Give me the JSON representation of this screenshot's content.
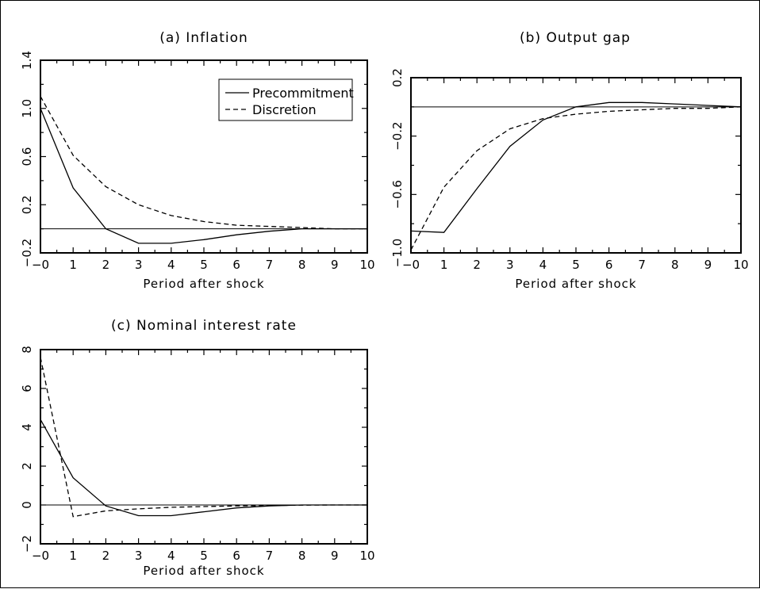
{
  "chart_data": [
    {
      "type": "line",
      "title": "(a) Inflation",
      "xlabel": "Period after shock",
      "ylabel": "",
      "x": [
        0,
        1,
        2,
        3,
        4,
        5,
        6,
        7,
        8,
        9,
        10
      ],
      "xlim": [
        0,
        10
      ],
      "ylim": [
        -0.2,
        1.4
      ],
      "yticks": [
        -0.2,
        0.2,
        0.6,
        1.0,
        1.4
      ],
      "ytick_labels": [
        "−0.2",
        "0.2",
        "0.6",
        "1.0",
        "1.4"
      ],
      "xtick_labels": [
        "−0",
        "1",
        "2",
        "3",
        "4",
        "5",
        "6",
        "7",
        "8",
        "9",
        "10"
      ],
      "zero_line": true,
      "legend": "top-right",
      "series": [
        {
          "name": "Precommitment",
          "style": "solid",
          "values": [
            1.0,
            0.34,
            0.0,
            -0.12,
            -0.12,
            -0.09,
            -0.05,
            -0.02,
            0.0,
            0.0,
            0.0
          ]
        },
        {
          "name": "Discretion",
          "style": "dashed",
          "values": [
            1.1,
            0.61,
            0.35,
            0.2,
            0.11,
            0.06,
            0.03,
            0.02,
            0.01,
            0.0,
            0.0
          ]
        }
      ]
    },
    {
      "type": "line",
      "title": "(b) Output gap",
      "xlabel": "Period after shock",
      "ylabel": "",
      "x": [
        0,
        1,
        2,
        3,
        4,
        5,
        6,
        7,
        8,
        9,
        10
      ],
      "xlim": [
        0,
        10
      ],
      "ylim": [
        -1.0,
        0.2
      ],
      "yticks": [
        -1.0,
        -0.6,
        -0.2,
        0.2
      ],
      "ytick_labels": [
        "−1.0",
        "−0.6",
        "−0.2",
        "0.2"
      ],
      "xtick_labels": [
        "−0",
        "1",
        "2",
        "3",
        "4",
        "5",
        "6",
        "7",
        "8",
        "9",
        "10"
      ],
      "zero_line": true,
      "series": [
        {
          "name": "Precommitment",
          "style": "solid",
          "values": [
            -0.85,
            -0.86,
            -0.56,
            -0.27,
            -0.09,
            0.0,
            0.03,
            0.03,
            0.02,
            0.01,
            0.0
          ]
        },
        {
          "name": "Discretion",
          "style": "dashed",
          "values": [
            -0.98,
            -0.55,
            -0.3,
            -0.15,
            -0.08,
            -0.05,
            -0.03,
            -0.02,
            -0.01,
            -0.01,
            0.0
          ]
        }
      ]
    },
    {
      "type": "line",
      "title": "(c) Nominal interest rate",
      "xlabel": "Period after shock",
      "ylabel": "",
      "x": [
        0,
        1,
        2,
        3,
        4,
        5,
        6,
        7,
        8,
        9,
        10
      ],
      "xlim": [
        0,
        10
      ],
      "ylim": [
        -2,
        8
      ],
      "yticks": [
        -2,
        0,
        2,
        4,
        6,
        8
      ],
      "ytick_labels": [
        "−2",
        "0",
        "2",
        "4",
        "6",
        "8"
      ],
      "xtick_labels": [
        "−0",
        "1",
        "2",
        "3",
        "4",
        "5",
        "6",
        "7",
        "8",
        "9",
        "10"
      ],
      "zero_line": true,
      "series": [
        {
          "name": "Precommitment",
          "style": "solid",
          "values": [
            4.4,
            1.4,
            -0.05,
            -0.55,
            -0.55,
            -0.35,
            -0.15,
            -0.05,
            0.0,
            0.0,
            0.0
          ]
        },
        {
          "name": "Discretion",
          "style": "dashed",
          "values": [
            7.6,
            -0.6,
            -0.3,
            -0.2,
            -0.12,
            -0.08,
            -0.05,
            -0.03,
            -0.01,
            0.0,
            0.0
          ]
        }
      ]
    }
  ]
}
